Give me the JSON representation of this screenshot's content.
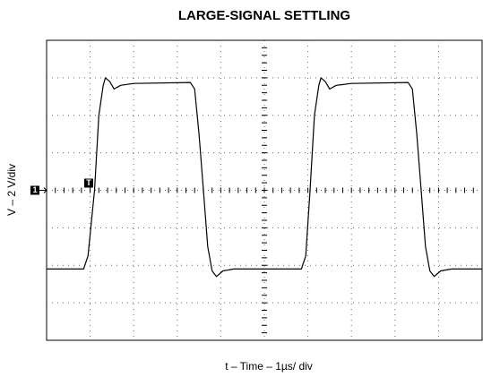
{
  "chart_data": {
    "type": "line",
    "title": "LARGE-SIGNAL SETTLING",
    "x_label": "t – Time – 1µs/ div",
    "y_label": "V – 2 V/div",
    "channel_marker": "1",
    "trigger_marker": "T",
    "xlim": [
      0,
      10
    ],
    "ylim": [
      -8,
      8
    ],
    "grid": true,
    "x": [
      0,
      0.85,
      0.95,
      1.1,
      1.2,
      1.3,
      1.35,
      1.45,
      1.55,
      1.7,
      2.0,
      3.3,
      3.4,
      3.5,
      3.6,
      3.7,
      3.8,
      3.9,
      4.05,
      4.3,
      5.85,
      5.95,
      6.05,
      6.15,
      6.25,
      6.3,
      6.4,
      6.5,
      6.65,
      7.0,
      8.3,
      8.4,
      8.5,
      8.6,
      8.7,
      8.8,
      8.9,
      9.05,
      9.3,
      10
    ],
    "series": [
      {
        "color": "#000000",
        "values": [
          -4.2,
          -4.2,
          -3.5,
          0,
          4,
          5.6,
          6.0,
          5.8,
          5.4,
          5.6,
          5.7,
          5.75,
          5.4,
          3,
          0,
          -3,
          -4.3,
          -4.6,
          -4.3,
          -4.2,
          -4.2,
          -3.5,
          0,
          4,
          5.6,
          6.0,
          5.8,
          5.4,
          5.6,
          5.7,
          5.75,
          5.4,
          3,
          0,
          -3,
          -4.3,
          -4.6,
          -4.3,
          -4.2,
          -4.2
        ]
      }
    ]
  }
}
